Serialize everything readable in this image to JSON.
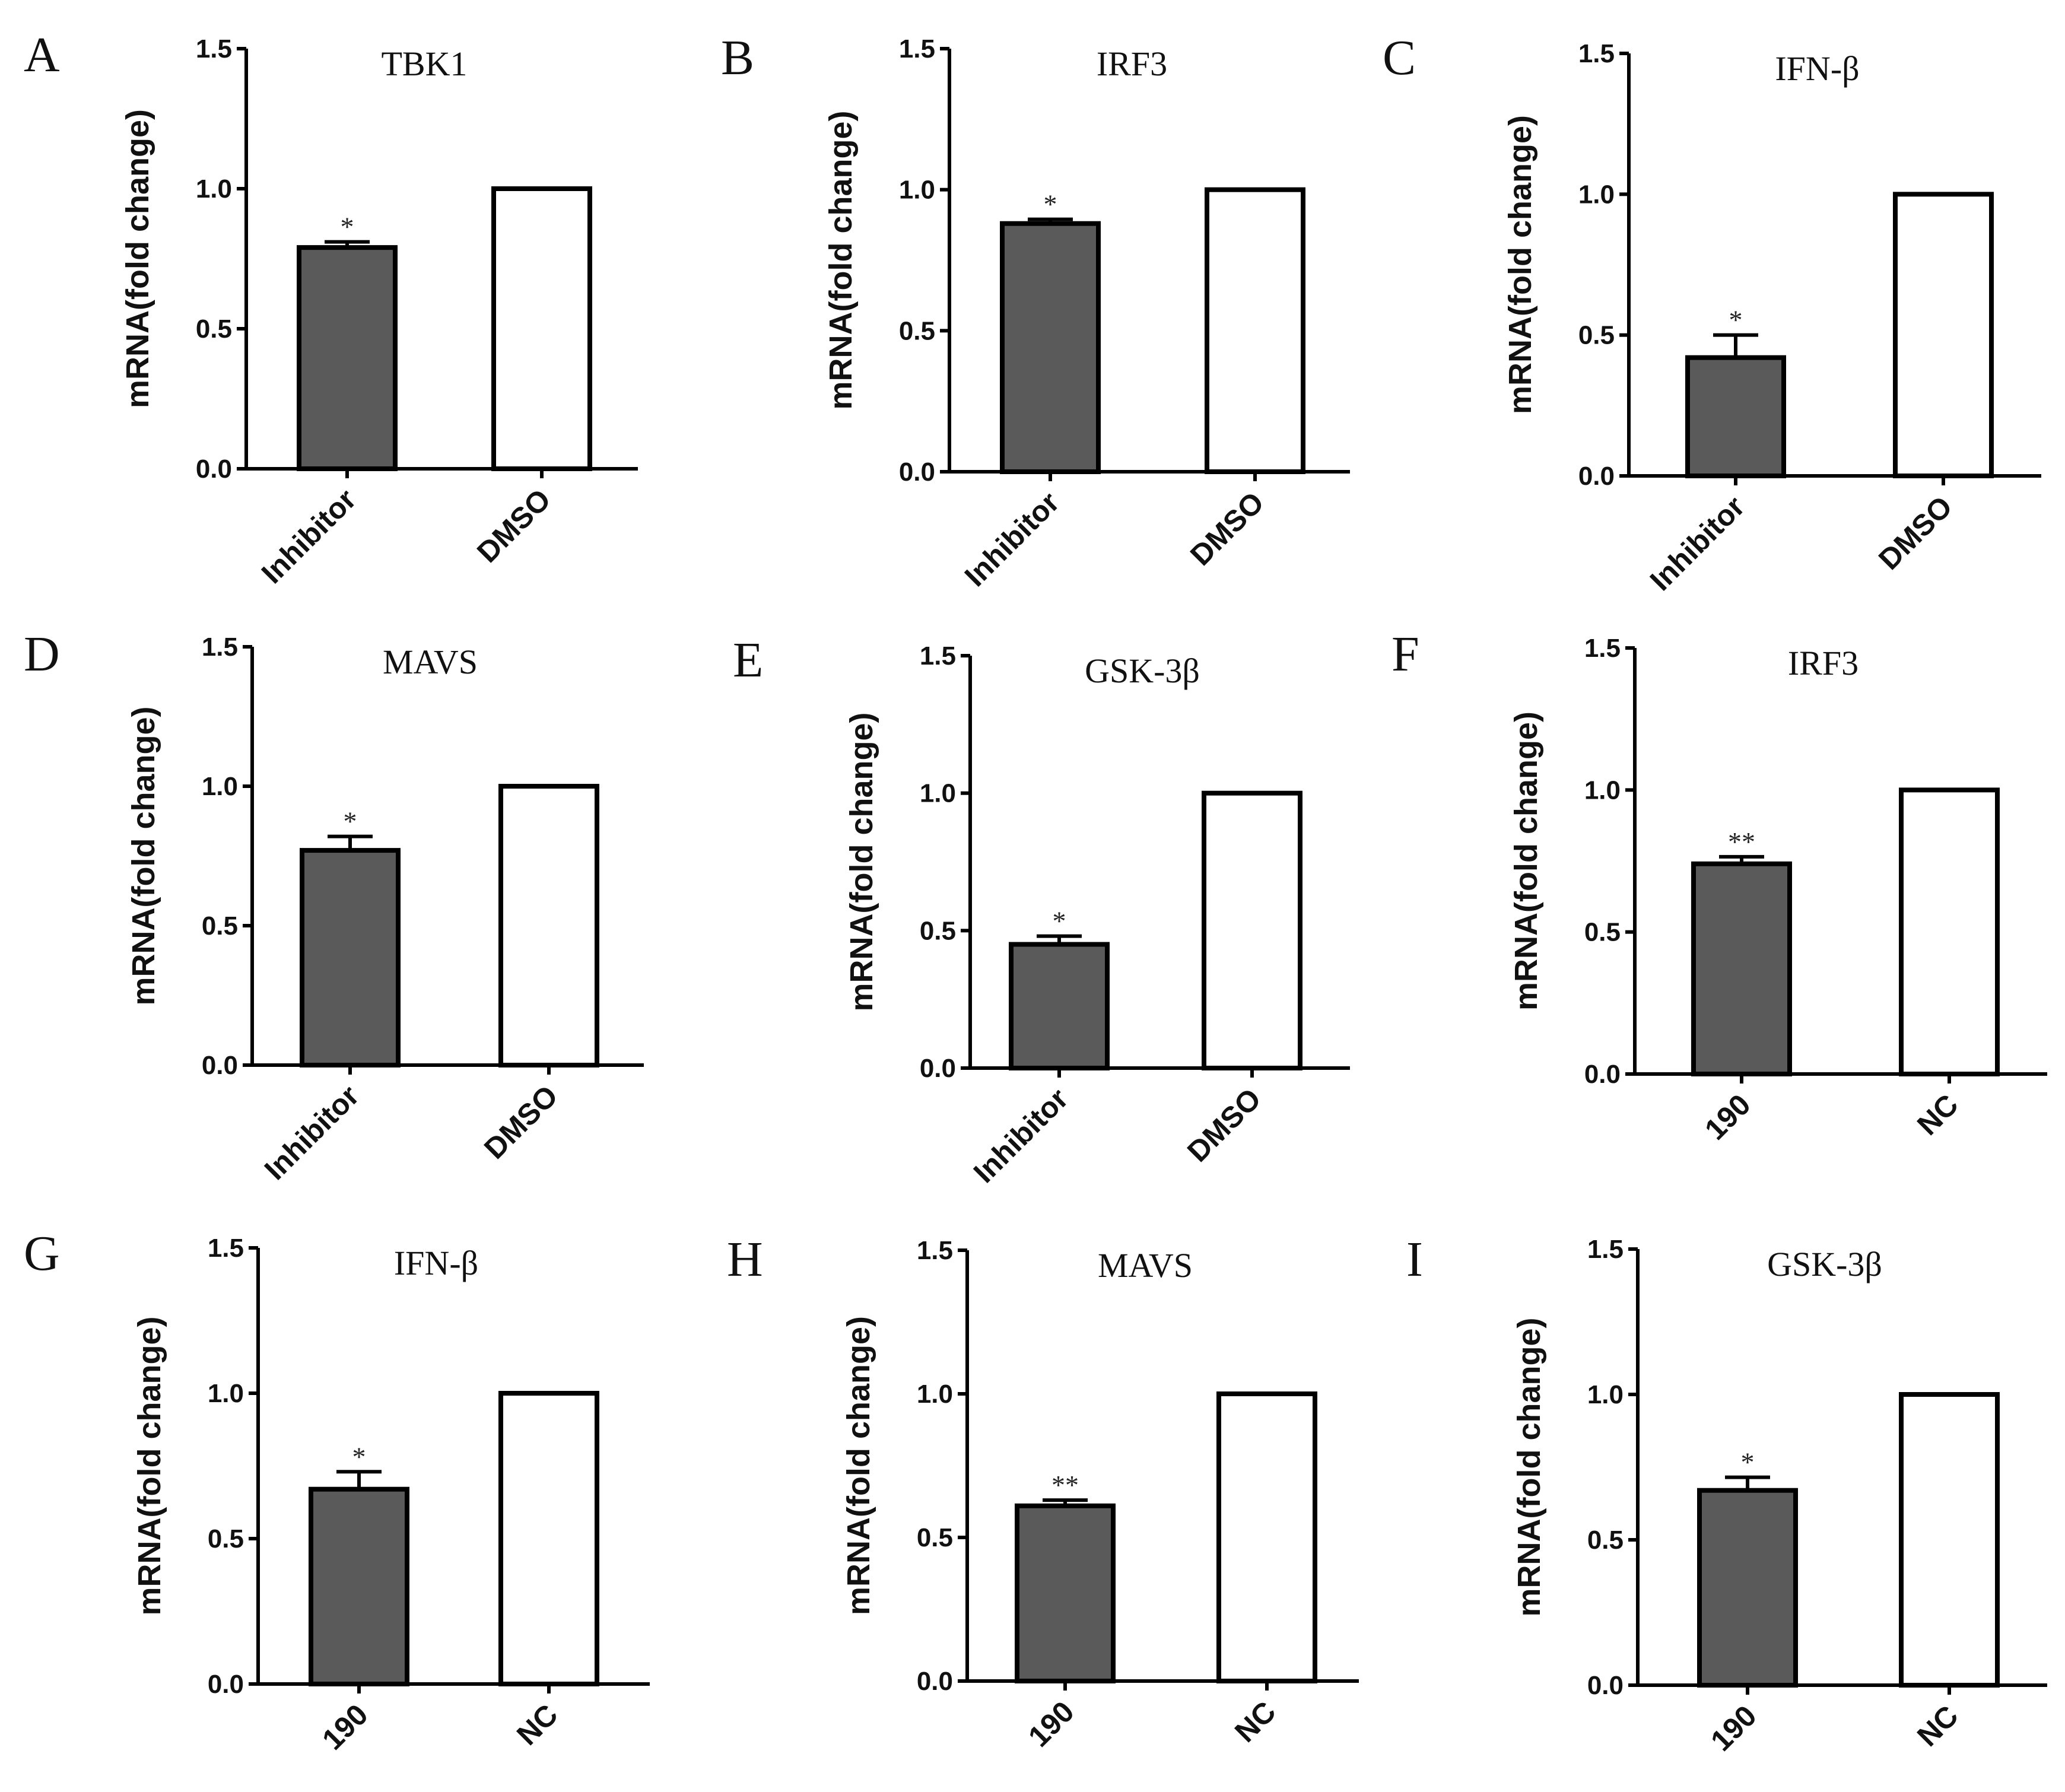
{
  "chart_data": [
    {
      "panel": "A",
      "type": "bar",
      "title": "TBK1",
      "ylabel": "mRNA(fold change)",
      "ylim": [
        0,
        1.5
      ],
      "yticks": [
        "0.0",
        "0.5",
        "1.0",
        "1.5"
      ],
      "categories": [
        "Inhibitor",
        "DMSO"
      ],
      "values": [
        0.79,
        1.0
      ],
      "errors": [
        0.02,
        0
      ],
      "significance": [
        "*",
        ""
      ],
      "colors": [
        "#5a5a5a",
        "#ffffff"
      ]
    },
    {
      "panel": "B",
      "type": "bar",
      "title": "IRF3",
      "ylabel": "mRNA(fold change)",
      "ylim": [
        0,
        1.5
      ],
      "yticks": [
        "0.0",
        "0.5",
        "1.0",
        "1.5"
      ],
      "categories": [
        "Inhibitor",
        "DMSO"
      ],
      "values": [
        0.88,
        1.0
      ],
      "errors": [
        0.015,
        0
      ],
      "significance": [
        "*",
        ""
      ],
      "colors": [
        "#5a5a5a",
        "#ffffff"
      ]
    },
    {
      "panel": "C",
      "type": "bar",
      "title": "IFN-β",
      "ylabel": "mRNA(fold change)",
      "ylim": [
        0,
        1.5
      ],
      "yticks": [
        "0.0",
        "0.5",
        "1.0",
        "1.5"
      ],
      "categories": [
        "Inhibitor",
        "DMSO"
      ],
      "values": [
        0.42,
        1.0
      ],
      "errors": [
        0.08,
        0
      ],
      "significance": [
        "*",
        ""
      ],
      "colors": [
        "#5a5a5a",
        "#ffffff"
      ]
    },
    {
      "panel": "D",
      "type": "bar",
      "title": "MAVS",
      "ylabel": "mRNA(fold change)",
      "ylim": [
        0,
        1.5
      ],
      "yticks": [
        "0.0",
        "0.5",
        "1.0",
        "1.5"
      ],
      "categories": [
        "Inhibitor",
        "DMSO"
      ],
      "values": [
        0.77,
        1.0
      ],
      "errors": [
        0.05,
        0
      ],
      "significance": [
        "*",
        ""
      ],
      "colors": [
        "#5a5a5a",
        "#ffffff"
      ]
    },
    {
      "panel": "E",
      "type": "bar",
      "title": "GSK-3β",
      "ylabel": "mRNA(fold change)",
      "ylim": [
        0,
        1.5
      ],
      "yticks": [
        "0.0",
        "0.5",
        "1.0",
        "1.5"
      ],
      "categories": [
        "Inhibitor",
        "DMSO"
      ],
      "values": [
        0.45,
        1.0
      ],
      "errors": [
        0.03,
        0
      ],
      "significance": [
        "*",
        ""
      ],
      "colors": [
        "#5a5a5a",
        "#ffffff"
      ]
    },
    {
      "panel": "F",
      "type": "bar",
      "title": "IRF3",
      "ylabel": "mRNA(fold change)",
      "ylim": [
        0,
        1.5
      ],
      "yticks": [
        "0.0",
        "0.5",
        "1.0",
        "1.5"
      ],
      "categories": [
        "190",
        "NC"
      ],
      "values": [
        0.74,
        1.0
      ],
      "errors": [
        0.025,
        0
      ],
      "significance": [
        "**",
        ""
      ],
      "colors": [
        "#5a5a5a",
        "#ffffff"
      ]
    },
    {
      "panel": "G",
      "type": "bar",
      "title": "IFN-β",
      "ylabel": "mRNA(fold change)",
      "ylim": [
        0,
        1.5
      ],
      "yticks": [
        "0.0",
        "0.5",
        "1.0",
        "1.5"
      ],
      "categories": [
        "190",
        "NC"
      ],
      "values": [
        0.67,
        1.0
      ],
      "errors": [
        0.06,
        0
      ],
      "significance": [
        "*",
        ""
      ],
      "colors": [
        "#5a5a5a",
        "#ffffff"
      ]
    },
    {
      "panel": "H",
      "type": "bar",
      "title": "MAVS",
      "ylabel": "mRNA(fold change)",
      "ylim": [
        0,
        1.5
      ],
      "yticks": [
        "0.0",
        "0.5",
        "1.0",
        "1.5"
      ],
      "categories": [
        "190",
        "NC"
      ],
      "values": [
        0.61,
        1.0
      ],
      "errors": [
        0.02,
        0
      ],
      "significance": [
        "**",
        ""
      ],
      "colors": [
        "#5a5a5a",
        "#ffffff"
      ]
    },
    {
      "panel": "I",
      "type": "bar",
      "title": "GSK-3β",
      "ylabel": "mRNA(fold change)",
      "ylim": [
        0,
        1.5
      ],
      "yticks": [
        "0.0",
        "0.5",
        "1.0",
        "1.5"
      ],
      "categories": [
        "190",
        "NC"
      ],
      "values": [
        0.67,
        1.0
      ],
      "errors": [
        0.045,
        0
      ],
      "significance": [
        "*",
        ""
      ],
      "colors": [
        "#5a5a5a",
        "#ffffff"
      ]
    }
  ]
}
